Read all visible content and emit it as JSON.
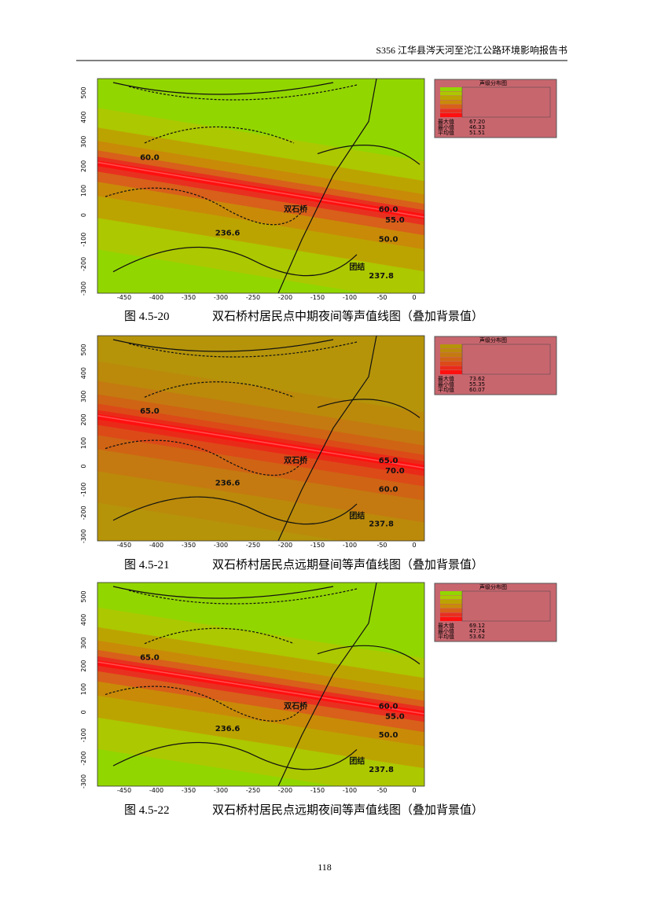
{
  "header": "S356 江华县涔天河至沱江公路环境影响报告书",
  "x_ticks": [
    "-450",
    "-400",
    "-350",
    "-300",
    "-250",
    "-200",
    "-150",
    "-100",
    "-50",
    "0"
  ],
  "y_ticks": [
    "500",
    "400",
    "300",
    "200",
    "100",
    "0",
    "-100",
    "-200",
    "-300"
  ],
  "figures": [
    {
      "number": "图 4.5-20",
      "caption": "双石桥村居民点中期夜间等声值线图（叠加背景值）",
      "legend": {
        "title": "声级分布图",
        "stats": [
          [
            "最大值",
            "67.20"
          ],
          [
            "最小值",
            "46.33"
          ],
          [
            "平均值",
            "51.51"
          ]
        ]
      },
      "map_labels": [
        "双石桥",
        "236.6",
        "237.8",
        "团结",
        "60.0",
        "55.0",
        "50.0",
        "60.0"
      ]
    },
    {
      "number": "图 4.5-21",
      "caption": "双石桥村居民点远期昼间等声值线图（叠加背景值）",
      "legend": {
        "title": "声级分布图",
        "stats": [
          [
            "最大值",
            "73.62"
          ],
          [
            "最小值",
            "55.35"
          ],
          [
            "平均值",
            "60.07"
          ]
        ]
      },
      "map_labels": [
        "双石桥",
        "236.6",
        "237.8",
        "团结",
        "65.0",
        "70.0",
        "60.0",
        "65.0"
      ]
    },
    {
      "number": "图 4.5-22",
      "caption": "双石桥村居民点远期夜间等声值线图（叠加背景值）",
      "legend": {
        "title": "声级分布图",
        "stats": [
          [
            "最大值",
            "69.12"
          ],
          [
            "最小值",
            "47.74"
          ],
          [
            "平均值",
            "53.62"
          ]
        ]
      },
      "map_labels": [
        "双石桥",
        "236.6",
        "237.8",
        "团结",
        "60.0",
        "55.0",
        "50.0",
        "65.0"
      ]
    }
  ],
  "page_number": "118"
}
